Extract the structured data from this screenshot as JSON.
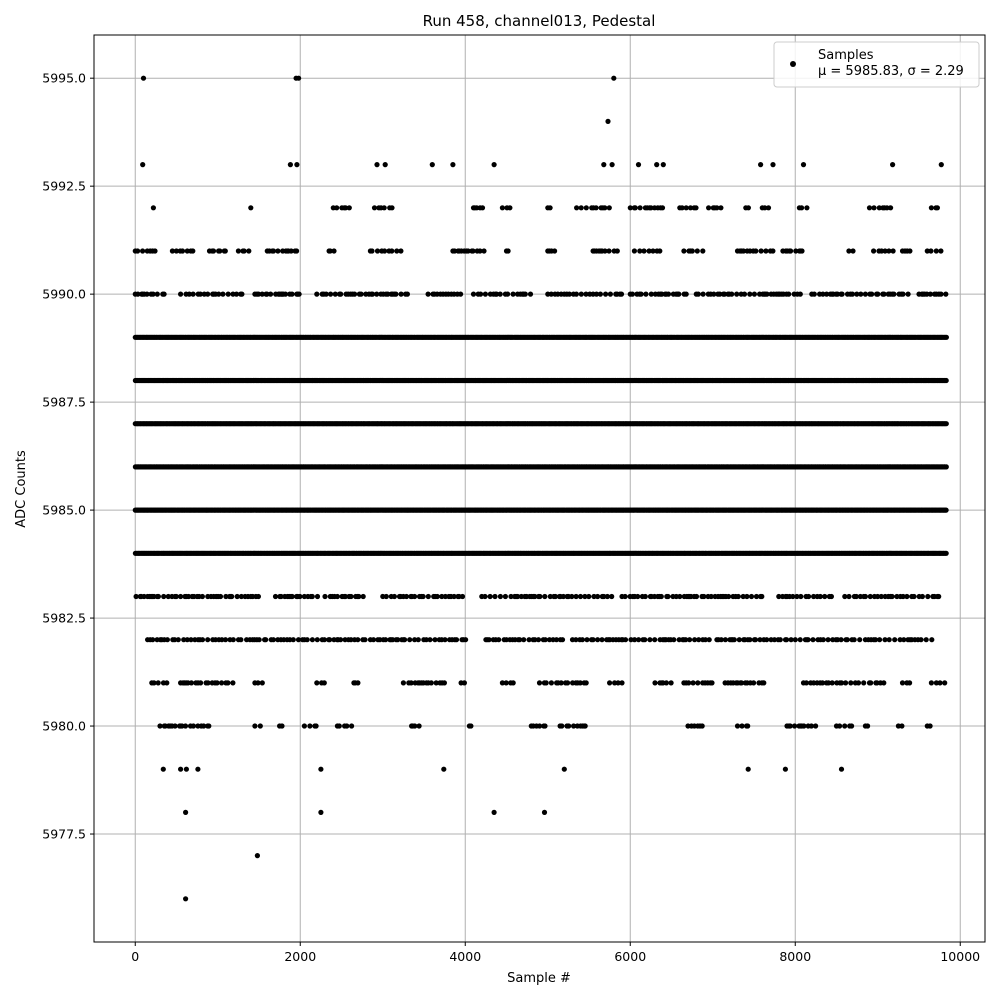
{
  "chart_data": {
    "type": "scatter",
    "title": "Run 458, channel013, Pedestal",
    "xlabel": "Sample #",
    "ylabel": "ADC Counts",
    "xlim": [
      -500,
      10300
    ],
    "ylim": [
      5975.0,
      5996.0
    ],
    "x_ticks": [
      0,
      2000,
      4000,
      6000,
      8000,
      10000
    ],
    "x_tick_labels": [
      "0",
      "2000",
      "4000",
      "6000",
      "8000",
      "10000"
    ],
    "y_ticks": [
      5977.5,
      5980.0,
      5982.5,
      5985.0,
      5987.5,
      5990.0,
      5992.5,
      5995.0
    ],
    "y_tick_labels": [
      "5977.5",
      "5980.0",
      "5982.5",
      "5985.0",
      "5987.5",
      "5990.0",
      "5992.5",
      "5995.0"
    ],
    "grid": true,
    "legend_position": "top-right",
    "series": [
      {
        "name": "Samples",
        "legend_stats": "μ = 5985.83, σ = 2.29",
        "color": "#000000",
        "marker": "dot",
        "sample_range": [
          0,
          9830
        ],
        "dense_levels": [
          {
            "y": 5984,
            "x_ranges": [
              [
                0,
                9830
              ]
            ]
          },
          {
            "y": 5985,
            "x_ranges": [
              [
                0,
                9830
              ]
            ]
          },
          {
            "y": 5986,
            "x_ranges": [
              [
                0,
                9830
              ]
            ]
          },
          {
            "y": 5987,
            "x_ranges": [
              [
                0,
                9830
              ]
            ]
          },
          {
            "y": 5988,
            "x_ranges": [
              [
                0,
                9830
              ]
            ]
          },
          {
            "y": 5989,
            "x_ranges": [
              [
                0,
                9830
              ]
            ]
          }
        ],
        "sparse_levels": [
          {
            "y": 5983,
            "x_ranges": [
              [
                10,
                500
              ],
              [
                550,
                1500
              ],
              [
                1700,
                2250
              ],
              [
                2300,
                2800
              ],
              [
                3000,
                4000
              ],
              [
                4200,
                5800
              ],
              [
                5900,
                7600
              ],
              [
                7800,
                8500
              ],
              [
                8600,
                9750
              ]
            ]
          },
          {
            "y": 5982,
            "x_ranges": [
              [
                150,
                1300
              ],
              [
                1350,
                2800
              ],
              [
                2850,
                4050
              ],
              [
                4250,
                5200
              ],
              [
                5300,
                7000
              ],
              [
                7050,
                7900
              ],
              [
                7950,
                8800
              ],
              [
                8850,
                9700
              ]
            ]
          },
          {
            "y": 5990,
            "x_ranges": [
              [
                0,
                400
              ],
              [
                550,
                1300
              ],
              [
                1450,
                2000
              ],
              [
                2200,
                3300
              ],
              [
                3550,
                3950
              ],
              [
                4100,
                4800
              ],
              [
                5000,
                5900
              ],
              [
                6000,
                6700
              ],
              [
                6800,
                8100
              ],
              [
                8200,
                9400
              ],
              [
                9500,
                9830
              ]
            ]
          },
          {
            "y": 5991,
            "x_ranges": [
              [
                0,
                250
              ],
              [
                450,
                700
              ],
              [
                900,
                1100
              ],
              [
                1250,
                1400
              ],
              [
                1600,
                2000
              ],
              [
                2350,
                2450
              ],
              [
                2850,
                3250
              ],
              [
                3850,
                4250
              ],
              [
                4500,
                4550
              ],
              [
                5000,
                5100
              ],
              [
                5550,
                5850
              ],
              [
                6050,
                6400
              ],
              [
                6650,
                6900
              ],
              [
                7300,
                7750
              ],
              [
                7850,
                8100
              ],
              [
                8650,
                8700
              ],
              [
                8950,
                9200
              ],
              [
                9300,
                9450
              ],
              [
                9600,
                9830
              ]
            ]
          },
          {
            "y": 5981,
            "x_ranges": [
              [
                200,
                400
              ],
              [
                550,
                1200
              ],
              [
                1450,
                1550
              ],
              [
                2200,
                2300
              ],
              [
                2650,
                2700
              ],
              [
                3250,
                3800
              ],
              [
                3950,
                4000
              ],
              [
                4450,
                4600
              ],
              [
                4900,
                5500
              ],
              [
                5750,
                5950
              ],
              [
                6300,
                6500
              ],
              [
                6650,
                7000
              ],
              [
                7150,
                7650
              ],
              [
                8100,
                8850
              ],
              [
                8900,
                9100
              ],
              [
                9300,
                9400
              ],
              [
                9650,
                9830
              ]
            ]
          },
          {
            "y": 5980,
            "x_ranges": [
              [
                300,
                900
              ],
              [
                1450,
                1550
              ],
              [
                1750,
                1800
              ],
              [
                2050,
                2200
              ],
              [
                2450,
                2650
              ],
              [
                3350,
                3500
              ],
              [
                4050,
                4100
              ],
              [
                4800,
                5000
              ],
              [
                5150,
                5500
              ],
              [
                6700,
                6900
              ],
              [
                7300,
                7450
              ],
              [
                7900,
                8250
              ],
              [
                8500,
                8700
              ],
              [
                8850,
                8900
              ],
              [
                9250,
                9300
              ],
              [
                9600,
                9650
              ]
            ]
          },
          {
            "y": 5992,
            "x_ranges": [
              [
                2400,
                2600
              ],
              [
                2900,
                3150
              ],
              [
                4100,
                4250
              ],
              [
                4450,
                4600
              ],
              [
                5000,
                5050
              ],
              [
                5350,
                5750
              ],
              [
                6000,
                6400
              ],
              [
                6600,
                6800
              ],
              [
                6950,
                7100
              ],
              [
                7400,
                7450
              ],
              [
                7600,
                7700
              ],
              [
                8050,
                8150
              ],
              [
                8900,
                9200
              ],
              [
                9650,
                9750
              ]
            ]
          }
        ],
        "isolated_points": [
          {
            "x": 100,
            "y": 5995
          },
          {
            "x": 1950,
            "y": 5995
          },
          {
            "x": 1980,
            "y": 5995
          },
          {
            "x": 5800,
            "y": 5995
          },
          {
            "x": 5730,
            "y": 5994
          },
          {
            "x": 90,
            "y": 5993
          },
          {
            "x": 1880,
            "y": 5993
          },
          {
            "x": 1960,
            "y": 5993
          },
          {
            "x": 2930,
            "y": 5993
          },
          {
            "x": 3030,
            "y": 5993
          },
          {
            "x": 3600,
            "y": 5993
          },
          {
            "x": 3850,
            "y": 5993
          },
          {
            "x": 4350,
            "y": 5993
          },
          {
            "x": 5680,
            "y": 5993
          },
          {
            "x": 5780,
            "y": 5993
          },
          {
            "x": 6100,
            "y": 5993
          },
          {
            "x": 6320,
            "y": 5993
          },
          {
            "x": 6400,
            "y": 5993
          },
          {
            "x": 7580,
            "y": 5993
          },
          {
            "x": 7730,
            "y": 5993
          },
          {
            "x": 8100,
            "y": 5993
          },
          {
            "x": 9180,
            "y": 5993
          },
          {
            "x": 9770,
            "y": 5993
          },
          {
            "x": 220,
            "y": 5992
          },
          {
            "x": 1400,
            "y": 5992
          },
          {
            "x": 340,
            "y": 5979
          },
          {
            "x": 550,
            "y": 5979
          },
          {
            "x": 620,
            "y": 5979
          },
          {
            "x": 760,
            "y": 5979
          },
          {
            "x": 2250,
            "y": 5979
          },
          {
            "x": 3740,
            "y": 5979
          },
          {
            "x": 5200,
            "y": 5979
          },
          {
            "x": 7430,
            "y": 5979
          },
          {
            "x": 7880,
            "y": 5979
          },
          {
            "x": 8560,
            "y": 5979
          },
          {
            "x": 610,
            "y": 5978
          },
          {
            "x": 2250,
            "y": 5978
          },
          {
            "x": 4350,
            "y": 5978
          },
          {
            "x": 4960,
            "y": 5978
          },
          {
            "x": 1480,
            "y": 5977
          },
          {
            "x": 610,
            "y": 5976
          }
        ]
      }
    ]
  }
}
